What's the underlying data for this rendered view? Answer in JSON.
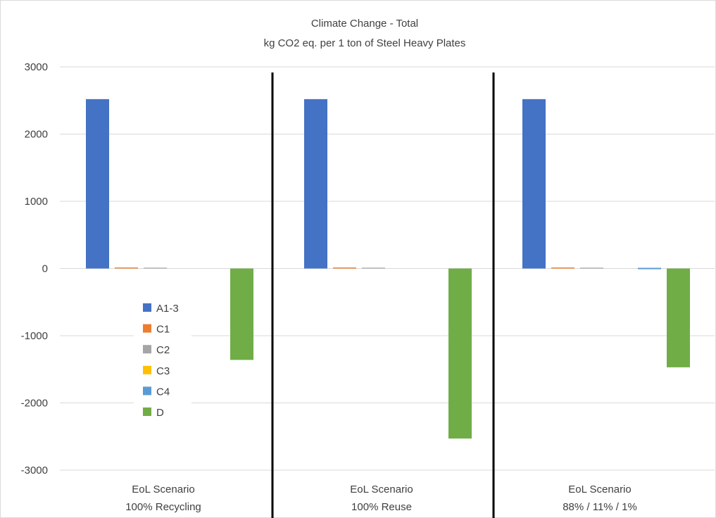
{
  "chart_data": {
    "type": "bar",
    "title": "Climate Change - Total",
    "subtitle": "kg CO2 eq. per 1 ton of Steel Heavy Plates",
    "xlabel": "",
    "ylabel": "",
    "ylim": [
      -3000,
      3000
    ],
    "yticks": [
      3000,
      2000,
      1000,
      0,
      -1000,
      -2000,
      -3000
    ],
    "grid": true,
    "legend_position": "left",
    "categories": [
      [
        "EoL Scenario",
        "100% Recycling"
      ],
      [
        "EoL Scenario",
        "100% Reuse"
      ],
      [
        "EoL Scenario",
        "88% / 11% / 1%"
      ]
    ],
    "series": [
      {
        "name": "A1-3",
        "color": "#4472C4",
        "values": [
          2520,
          2520,
          2520
        ]
      },
      {
        "name": "C1",
        "color": "#ED7D31",
        "values": [
          15,
          15,
          15
        ]
      },
      {
        "name": "C2",
        "color": "#A5A5A5",
        "values": [
          12,
          12,
          12
        ]
      },
      {
        "name": "C3",
        "color": "#FFC000",
        "values": [
          0,
          0,
          0
        ]
      },
      {
        "name": "C4",
        "color": "#5B9BD5",
        "values": [
          0,
          0,
          10
        ]
      },
      {
        "name": "D",
        "color": "#70AD47",
        "values": [
          -1360,
          -2530,
          -1470
        ]
      }
    ]
  }
}
